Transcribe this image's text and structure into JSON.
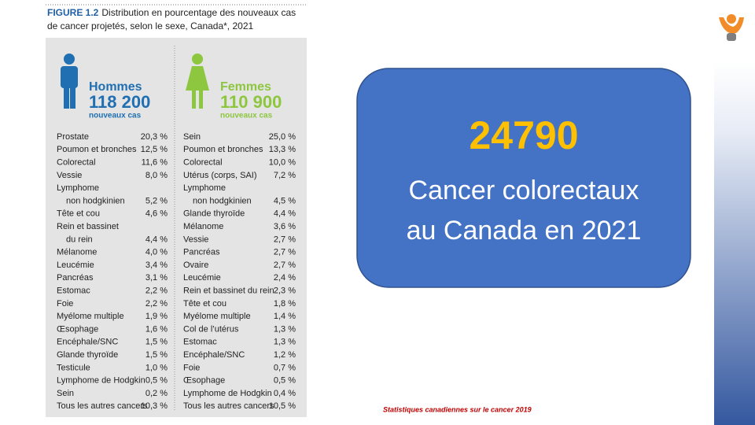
{
  "figure": {
    "label": "FIGURE 1.2",
    "title_lines": [
      "Distribution en pourcentage des nouveaux cas",
      "de cancer projetés, selon le sexe, Canada*, 2021"
    ],
    "men": {
      "heading": "Hommes",
      "count": "118 200",
      "subtitle": "nouveaux cas",
      "rows": [
        {
          "name": [
            "Prostate"
          ],
          "value": "20,3 %"
        },
        {
          "name": [
            "Poumon et bronches"
          ],
          "value": "12,5 %"
        },
        {
          "name": [
            "Colorectal"
          ],
          "value": "11,6 %"
        },
        {
          "name": [
            "Vessie"
          ],
          "value": "8,0 %"
        },
        {
          "name": [
            "Lymphome",
            "non hodgkinien"
          ],
          "value": "5,2 %"
        },
        {
          "name": [
            "Tête et cou"
          ],
          "value": "4,6 %"
        },
        {
          "name": [
            "Rein et bassinet",
            "du rein"
          ],
          "value": "4,4 %"
        },
        {
          "name": [
            "Mélanome"
          ],
          "value": "4,0 %"
        },
        {
          "name": [
            "Leucémie"
          ],
          "value": "3,4 %"
        },
        {
          "name": [
            "Pancréas"
          ],
          "value": "3,1 %"
        },
        {
          "name": [
            "Estomac"
          ],
          "value": "2,2 %"
        },
        {
          "name": [
            "Foie"
          ],
          "value": "2,2 %"
        },
        {
          "name": [
            "Myélome multiple"
          ],
          "value": "1,9 %"
        },
        {
          "name": [
            "Œsophage"
          ],
          "value": "1,6 %"
        },
        {
          "name": [
            "Encéphale/SNC"
          ],
          "value": "1,5 %"
        },
        {
          "name": [
            "Glande thyroïde"
          ],
          "value": "1,5 %"
        },
        {
          "name": [
            "Testicule"
          ],
          "value": "1,0 %"
        },
        {
          "name": [
            "Lymphome de Hodgkin"
          ],
          "value": "0,5 %"
        },
        {
          "name": [
            "Sein"
          ],
          "value": "0,2 %"
        },
        {
          "name": [
            "Tous les autres cancers"
          ],
          "value": "10,3 %"
        }
      ]
    },
    "women": {
      "heading": "Femmes",
      "count": "110 900",
      "subtitle": "nouveaux cas",
      "rows": [
        {
          "name": [
            "Sein"
          ],
          "value": "25,0 %"
        },
        {
          "name": [
            "Poumon et bronches"
          ],
          "value": "13,3 %"
        },
        {
          "name": [
            "Colorectal"
          ],
          "value": "10,0 %"
        },
        {
          "name": [
            "Utérus (corps, SAI)"
          ],
          "value": "7,2 %"
        },
        {
          "name": [
            "Lymphome",
            "non hodgkinien"
          ],
          "value": "4,5 %"
        },
        {
          "name": [
            "Glande thyroïde"
          ],
          "value": "4,4 %"
        },
        {
          "name": [
            "Mélanome"
          ],
          "value": "3,6 %"
        },
        {
          "name": [
            "Vessie"
          ],
          "value": "2,7 %"
        },
        {
          "name": [
            "Pancréas"
          ],
          "value": "2,7 %"
        },
        {
          "name": [
            "Ovaire"
          ],
          "value": "2,7 %"
        },
        {
          "name": [
            "Leucémie"
          ],
          "value": "2,4 %"
        },
        {
          "name": [
            "Rein et bassinet du rein"
          ],
          "value": "2,3 %"
        },
        {
          "name": [
            "Tête et cou"
          ],
          "value": "1,8 %"
        },
        {
          "name": [
            "Myélome multiple"
          ],
          "value": "1,4 %"
        },
        {
          "name": [
            "Col de l’utérus"
          ],
          "value": "1,3 %"
        },
        {
          "name": [
            "Estomac"
          ],
          "value": "1,3 %"
        },
        {
          "name": [
            "Encéphale/SNC"
          ],
          "value": "1,2 %"
        },
        {
          "name": [
            "Foie"
          ],
          "value": "0,7 %"
        },
        {
          "name": [
            "Œsophage"
          ],
          "value": "0,5 %"
        },
        {
          "name": [
            "Lymphome de Hodgkin"
          ],
          "value": "0,4 %"
        },
        {
          "name": [
            "Tous les autres cancers"
          ],
          "value": "10,5 %"
        }
      ]
    }
  },
  "callout": {
    "number": "24790",
    "lines": [
      "Cancer colorectaux",
      "au Canada en 2021"
    ]
  },
  "source": "Statistiques canadiennes sur le cancer 2019"
}
